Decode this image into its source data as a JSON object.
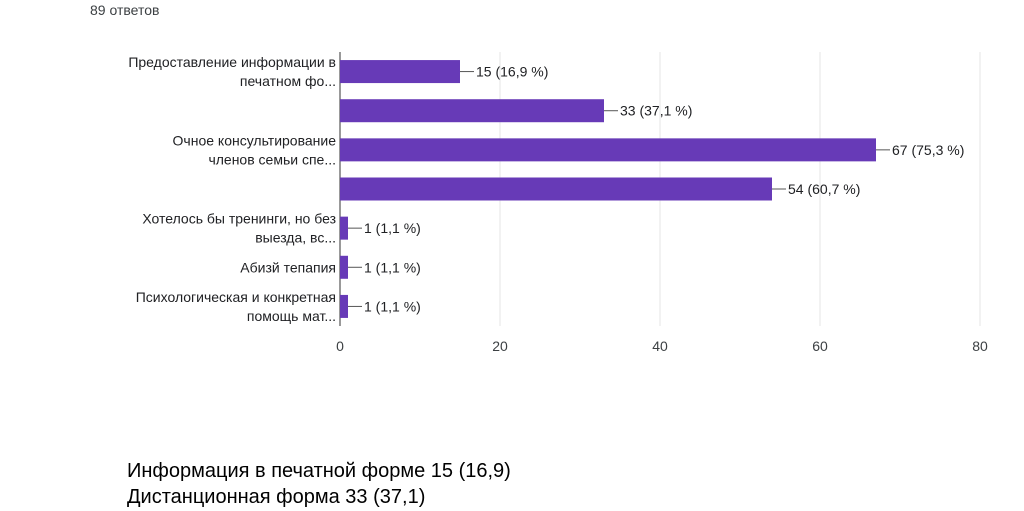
{
  "response_count": "89 ответов",
  "colors": {
    "bar": "#673ab7",
    "grid": "#e6e6e6",
    "axis": "#333333",
    "leader": "#555555"
  },
  "chart_data": {
    "type": "bar",
    "orientation": "horizontal",
    "xlim": [
      0,
      80
    ],
    "x_ticks": [
      "0",
      "20",
      "40",
      "60",
      "80"
    ],
    "grid": true,
    "categories": [
      [
        "Предоставление информации в",
        "печатном фо..."
      ],
      [],
      [
        "Очное консультирование",
        "членов семьи спе..."
      ],
      [],
      [
        "Хотелось бы тренинги, но без",
        "выезда, вс..."
      ],
      [
        "Абизй тепапия"
      ],
      [
        "Психологическая и конкретная",
        "помощь мат..."
      ]
    ],
    "values": [
      15,
      33,
      67,
      54,
      1,
      1,
      1
    ],
    "value_labels": [
      "15 (16,9 %)",
      "33 (37,1 %)",
      "67 (75,3 %)",
      "54 (60,7 %)",
      "1 (1,1 %)",
      "1 (1,1 %)",
      "1 (1,1 %)"
    ]
  },
  "notes": [
    "Информация в печатной форме 15 (16,9)",
    "Дистанционная форма 33 (37,1)"
  ]
}
